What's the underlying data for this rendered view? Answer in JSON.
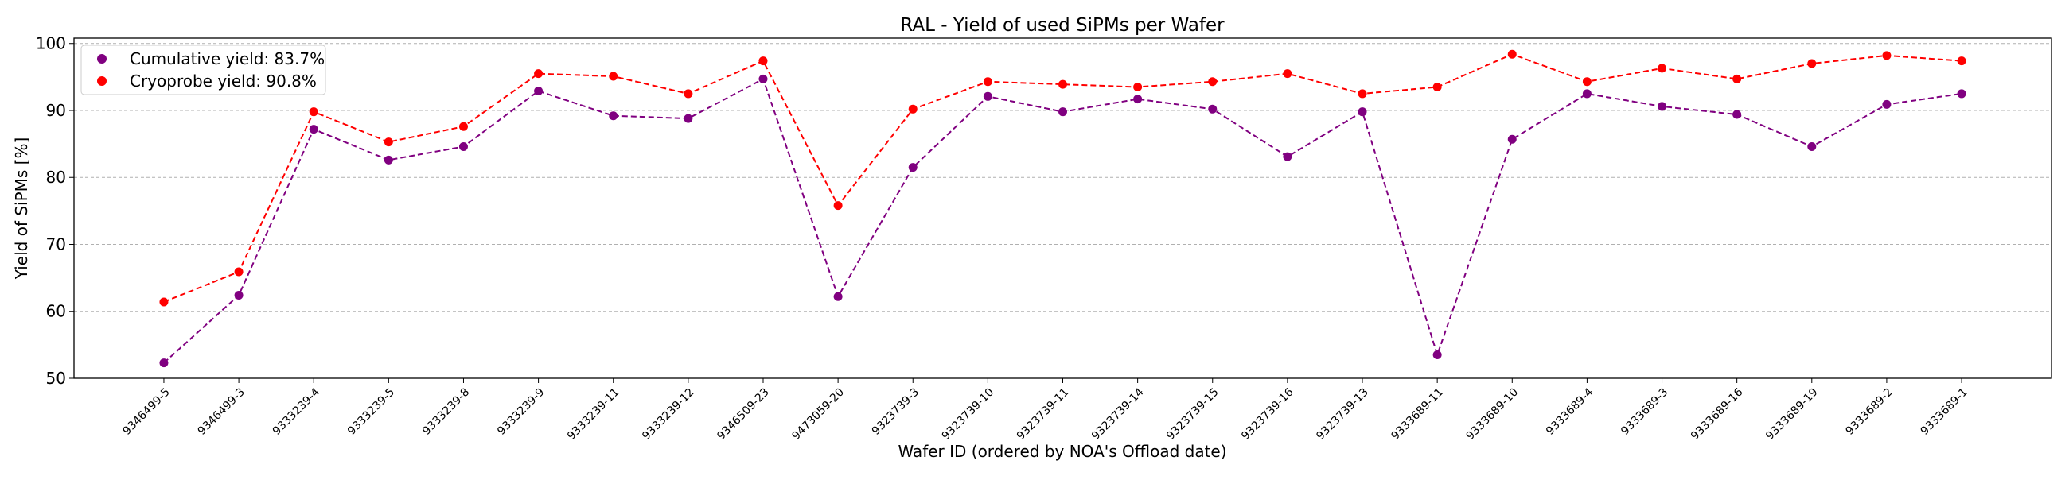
{
  "chart_data": {
    "type": "line",
    "title": "RAL - Yield of used SiPMs per Wafer",
    "xlabel": "Wafer ID (ordered by NOA's Offload date)",
    "ylabel": "Yield of SiPMs [%]",
    "ylim": [
      50,
      100.8
    ],
    "yticks": [
      50,
      60,
      70,
      80,
      90,
      100
    ],
    "grid": "y, dashed",
    "legend_position": "top-left",
    "categories": [
      "9346499-5",
      "9346499-3",
      "9333239-4",
      "9333239-5",
      "9333239-8",
      "9333239-9",
      "9333239-11",
      "9333239-12",
      "9346509-23",
      "9473059-20",
      "9323739-3",
      "9323739-10",
      "9323739-11",
      "9323739-14",
      "9323739-15",
      "9323739-16",
      "9323739-13",
      "9333689-11",
      "9333689-10",
      "9333689-4",
      "9333689-3",
      "9333689-16",
      "9333689-19",
      "9333689-2",
      "9333689-1"
    ],
    "series": [
      {
        "name": "Cumulative yield: 83.7%",
        "color": "#800080",
        "values": [
          52.3,
          62.4,
          87.2,
          82.6,
          84.6,
          92.9,
          89.2,
          88.8,
          94.7,
          62.2,
          81.5,
          92.1,
          89.8,
          91.7,
          90.2,
          83.1,
          89.8,
          53.5,
          85.7,
          92.5,
          90.6,
          89.4,
          84.6,
          90.9,
          92.5
        ]
      },
      {
        "name": "Cryoprobe yield: 90.8%",
        "color": "#ff0000",
        "values": [
          61.4,
          65.9,
          89.8,
          85.3,
          87.6,
          95.5,
          95.1,
          92.5,
          97.4,
          75.8,
          90.2,
          94.3,
          93.9,
          93.5,
          94.3,
          95.5,
          92.5,
          93.5,
          98.4,
          94.3,
          96.3,
          94.7,
          97.0,
          98.2,
          97.4
        ]
      }
    ]
  }
}
